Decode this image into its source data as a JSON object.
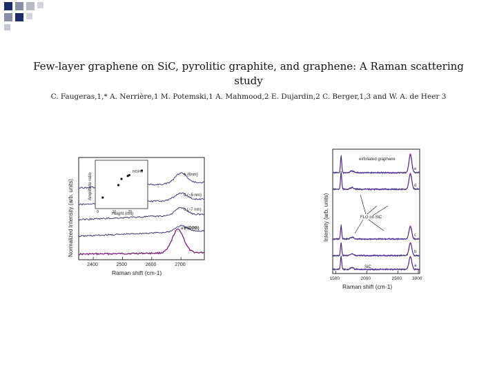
{
  "slide": {
    "title": "Few-layer graphene on SiC, pyrolitic graphite, and graphene: A Raman scattering study",
    "authors": "C. Faugeras,1,* A. Nerrière,1 M. Potemski,1 A. Mahmood,2 E. Dujardin,2 C. Berger,1,3 and W. A. de Heer 3"
  },
  "chart_data": [
    {
      "type": "line",
      "xlabel": "Raman shift (cm-1)",
      "ylabel": "Normalized Intensity (arb. units)",
      "xlim": [
        2350,
        2780
      ],
      "x_ticks": [
        "2400",
        "2500",
        "2600",
        "2700"
      ],
      "series": [
        {
          "name": "a (HOPG)",
          "peak_x": 2690,
          "amplitude": 1.0
        },
        {
          "name": "b (4 nm)",
          "peak_x": 2700,
          "amplitude": 0.25
        },
        {
          "name": "c (~7 nm)",
          "peak_x": 2700,
          "amplitude": 0.32
        },
        {
          "name": "d (~5 nm)",
          "peak_x": 2700,
          "amplitude": 0.3
        },
        {
          "name": "e (6nm)",
          "peak_x": 2700,
          "amplitude": 0.45
        }
      ],
      "inset": {
        "type": "scatter",
        "xlabel": "Height (nm)",
        "ylabel": "Amplitude ratio",
        "x_ticks": [
          "0",
          "10",
          "20"
        ],
        "legend": "HOPG",
        "points": [
          {
            "x": 3,
            "y": 0.2
          },
          {
            "x": 13,
            "y": 0.5
          },
          {
            "x": 15,
            "y": 0.65
          },
          {
            "x": 19,
            "y": 0.72
          },
          {
            "x": 20,
            "y": 0.74
          },
          {
            "x": 28,
            "y": 0.85
          }
        ]
      }
    },
    {
      "type": "line",
      "xlabel": "Raman shift (cm-1)",
      "ylabel": "Intensity (arb. units)",
      "xlim": [
        1450,
        2850
      ],
      "x_ticks": [
        "1500",
        "2000",
        "2500",
        "3000"
      ],
      "annotations": [
        "exfoliated graphene",
        "FLG on SiC",
        "SiC"
      ],
      "series": [
        {
          "name": "a"
        },
        {
          "name": "b"
        },
        {
          "name": "c"
        },
        {
          "name": "d"
        },
        {
          "name": "e"
        }
      ]
    }
  ]
}
